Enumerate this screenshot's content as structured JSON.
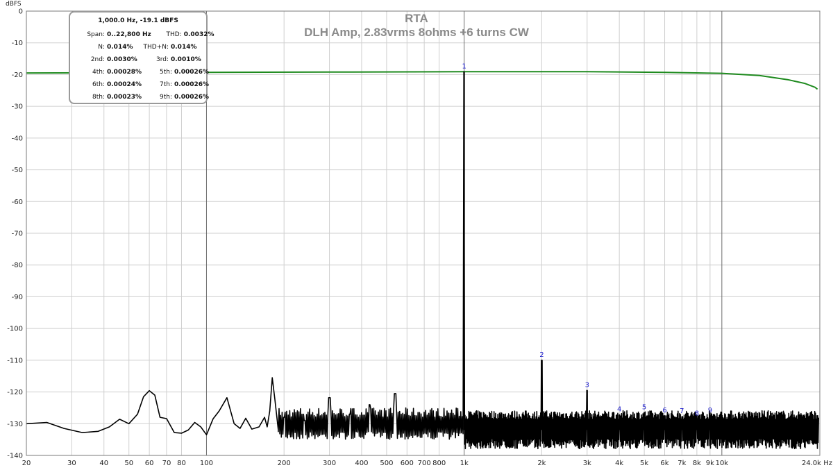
{
  "chart_data": {
    "type": "line",
    "title": "RTA",
    "subtitle": "DLH Amp, 2.83vrms 8ohms +6 turns CW",
    "ylabel": "dBFS",
    "xlabel": "Hz",
    "x_scale": "log",
    "xlim": [
      20,
      24000
    ],
    "ylim": [
      -140,
      0
    ],
    "grid": true,
    "x_ticks": [
      {
        "value": 20,
        "label": "20"
      },
      {
        "value": 30,
        "label": "30"
      },
      {
        "value": 40,
        "label": "40"
      },
      {
        "value": 50,
        "label": "50"
      },
      {
        "value": 60,
        "label": "60"
      },
      {
        "value": 70,
        "label": "70"
      },
      {
        "value": 80,
        "label": "80"
      },
      {
        "value": 100,
        "label": "100"
      },
      {
        "value": 200,
        "label": "200"
      },
      {
        "value": 300,
        "label": "300"
      },
      {
        "value": 400,
        "label": "400"
      },
      {
        "value": 500,
        "label": "500"
      },
      {
        "value": 600,
        "label": "600"
      },
      {
        "value": 700,
        "label": "700"
      },
      {
        "value": 800,
        "label": "800"
      },
      {
        "value": 1000,
        "label": "1k"
      },
      {
        "value": 2000,
        "label": "2k"
      },
      {
        "value": 3000,
        "label": "3k"
      },
      {
        "value": 4000,
        "label": "4k"
      },
      {
        "value": 5000,
        "label": "5k"
      },
      {
        "value": 6000,
        "label": "6k"
      },
      {
        "value": 7000,
        "label": "7k"
      },
      {
        "value": 8000,
        "label": "8k"
      },
      {
        "value": 9000,
        "label": "9k"
      },
      {
        "value": 10000,
        "label": "10k"
      },
      {
        "value": 24000,
        "label": "24.0k Hz"
      }
    ],
    "y_ticks": [
      0,
      -10,
      -20,
      -30,
      -40,
      -50,
      -60,
      -70,
      -80,
      -90,
      -100,
      -110,
      -120,
      -130,
      -140
    ],
    "series": [
      {
        "color": "#1e8a1e",
        "points": [
          [
            20,
            -19.5
          ],
          [
            50,
            -19.4
          ],
          [
            100,
            -19.3
          ],
          [
            300,
            -19.2
          ],
          [
            1000,
            -19.1
          ],
          [
            3000,
            -19.1
          ],
          [
            6000,
            -19.3
          ],
          [
            10000,
            -19.6
          ],
          [
            14000,
            -20.3
          ],
          [
            18000,
            -21.6
          ],
          [
            21000,
            -22.8
          ],
          [
            23000,
            -24.0
          ],
          [
            23500,
            -24.6
          ]
        ]
      },
      {
        "color": "#000000",
        "description_points": "spectrum",
        "base_points": [
          [
            20,
            -130
          ],
          [
            24,
            -129.6
          ],
          [
            28,
            -131.5
          ],
          [
            33,
            -132.8
          ],
          [
            38,
            -132.4
          ],
          [
            42,
            -131
          ],
          [
            46,
            -128.6
          ],
          [
            50,
            -130
          ],
          [
            54,
            -127
          ],
          [
            57,
            -121.5
          ],
          [
            60,
            -119.6
          ],
          [
            63,
            -121
          ],
          [
            66,
            -128
          ],
          [
            70,
            -128.4
          ],
          [
            75,
            -132.8
          ],
          [
            80,
            -133
          ],
          [
            85,
            -132
          ],
          [
            90,
            -129.6
          ],
          [
            95,
            -131
          ],
          [
            100,
            -133.5
          ],
          [
            106,
            -128.5
          ],
          [
            112,
            -126
          ],
          [
            120,
            -121.8
          ],
          [
            128,
            -130
          ],
          [
            135,
            -131.5
          ],
          [
            142,
            -128.3
          ],
          [
            150,
            -131.7
          ],
          [
            160,
            -131
          ],
          [
            168,
            -128
          ],
          [
            172,
            -131
          ],
          [
            176,
            -126
          ],
          [
            180,
            -115.5
          ],
          [
            184,
            -122
          ],
          [
            190,
            -132
          ]
        ],
        "peaks": [
          {
            "x": 1000,
            "y": -19.1,
            "label": "1"
          },
          {
            "x": 2000,
            "y": -110,
            "label": "2"
          },
          {
            "x": 3000,
            "y": -119.5,
            "label": "3"
          },
          {
            "x": 4000,
            "y": -127.2,
            "label": "4"
          },
          {
            "x": 5000,
            "y": -126.5,
            "label": "5"
          },
          {
            "x": 6000,
            "y": -127.5,
            "label": "6"
          },
          {
            "x": 7000,
            "y": -127.8,
            "label": "7"
          },
          {
            "x": 8000,
            "y": -128.5,
            "label": "8"
          },
          {
            "x": 9000,
            "y": -127.5,
            "label": "9"
          }
        ],
        "spurs": [
          [
            200,
            -128
          ],
          [
            240,
            -129
          ],
          [
            300,
            -121.8
          ],
          [
            360,
            -127
          ],
          [
            430,
            -124
          ],
          [
            540,
            -120.5
          ]
        ]
      }
    ]
  },
  "info": {
    "header": "1,000.0 Hz, -19.1 dBFS",
    "rows": [
      [
        {
          "k": "Span:",
          "v": "0..22,800 Hz"
        },
        {
          "k": "THD:",
          "v": "0.0032%"
        }
      ],
      [
        {
          "k": "N:",
          "v": "0.014%"
        },
        {
          "k": "THD+N:",
          "v": "0.014%"
        }
      ],
      [
        {
          "k": "2nd:",
          "v": "0.0030%"
        },
        {
          "k": "3rd:",
          "v": "0.0010%"
        }
      ],
      [
        {
          "k": "4th:",
          "v": "0.00028%"
        },
        {
          "k": "5th:",
          "v": "0.00026%"
        }
      ],
      [
        {
          "k": "6th:",
          "v": "0.00024%"
        },
        {
          "k": "7th:",
          "v": "0.00026%"
        }
      ],
      [
        {
          "k": "8th:",
          "v": "0.00023%"
        },
        {
          "k": "9th:",
          "v": "0.00026%"
        }
      ]
    ]
  }
}
